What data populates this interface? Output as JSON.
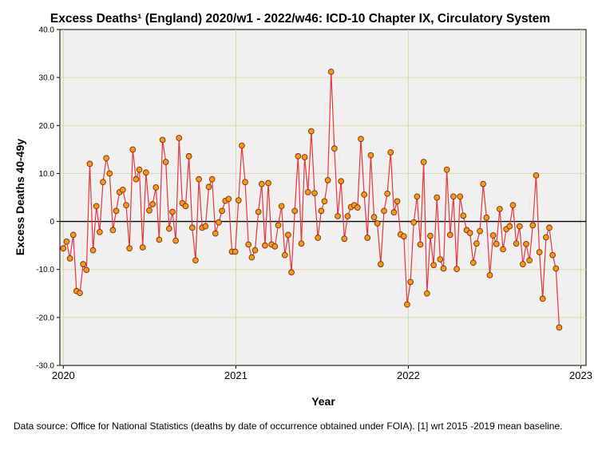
{
  "chart_data": {
    "type": "line",
    "title": "Excess Deaths¹ (England) 2020/w1 - 2022/w46: ICD-10 Chapter IX, Circulatory System",
    "xlabel": "Year",
    "ylabel": "Excess Deaths 40-49y",
    "xlim": [
      2019.98,
      2023.03
    ],
    "ylim": [
      -30,
      40
    ],
    "x_ticks": [
      2020,
      2021,
      2022,
      2023
    ],
    "y_ticks": [
      -30,
      -20,
      -10,
      0,
      10,
      20,
      30,
      40
    ],
    "y_tick_labels": [
      "-30.0",
      "-20.0",
      "-10.0",
      "0",
      "10.0",
      "20.0",
      "30.0",
      "40.0"
    ],
    "reference_line": 0,
    "grid": true,
    "start_year": 2020,
    "weeks_per_year": 52.18,
    "series": [
      {
        "name": "Excess deaths",
        "color": "#e8343a",
        "marker_fill": "#f59a1a",
        "marker_edge": "#7a2a08",
        "values": [
          -5.6,
          -4.2,
          -7.7,
          -2.8,
          -14.5,
          -14.9,
          -8.9,
          -10.1,
          12.0,
          -6.0,
          3.2,
          -2.2,
          8.2,
          13.2,
          10.0,
          -1.8,
          2.2,
          6.1,
          6.6,
          3.4,
          -5.6,
          15.0,
          8.8,
          10.8,
          -5.4,
          10.2,
          2.3,
          3.6,
          7.1,
          -3.8,
          17.0,
          12.4,
          -1.5,
          2.0,
          -4.0,
          17.4,
          3.8,
          3.2,
          13.6,
          -1.3,
          -8.1,
          8.8,
          -1.3,
          -1.0,
          7.2,
          8.8,
          -2.5,
          -0.2,
          2.2,
          4.3,
          4.7,
          -6.3,
          -6.3,
          4.4,
          15.8,
          8.2,
          -4.8,
          -7.5,
          -6.0,
          2.0,
          7.8,
          -5.0,
          8.0,
          -4.8,
          -5.2,
          -0.8,
          3.2,
          -7.0,
          -2.8,
          -10.6,
          2.2,
          13.6,
          -4.6,
          13.4,
          6.1,
          18.8,
          5.9,
          -3.4,
          2.2,
          4.2,
          8.6,
          31.2,
          15.2,
          1.1,
          8.4,
          -3.6,
          1.1,
          3.0,
          3.4,
          2.9,
          17.2,
          5.6,
          -3.4,
          13.8,
          0.9,
          -0.4,
          -8.9,
          2.2,
          5.8,
          14.4,
          1.9,
          4.2,
          -2.7,
          -3.1,
          -17.3,
          -12.6,
          -0.2,
          5.2,
          -4.8,
          12.4,
          -15.0,
          -3.0,
          -9.1,
          5.0,
          -7.9,
          -9.8,
          10.8,
          -2.8,
          5.2,
          -9.9,
          5.2,
          1.2,
          -1.8,
          -2.4,
          -8.6,
          -4.6,
          -2.0,
          7.8,
          0.8,
          -11.2,
          -2.9,
          -4.7,
          2.6,
          -5.8,
          -1.6,
          -1.0,
          3.4,
          -4.6,
          -1.0,
          -8.9,
          -4.7,
          -8.1,
          -0.8,
          9.6,
          -6.4,
          -16.1,
          -3.3,
          -1.3,
          -7.0,
          -9.8,
          -22.1
        ]
      }
    ]
  },
  "footnote": "Data source: Office for National Statistics (deaths by date of occurrence obtained under FOIA). [1] wrt 2015 -2019 mean baseline."
}
